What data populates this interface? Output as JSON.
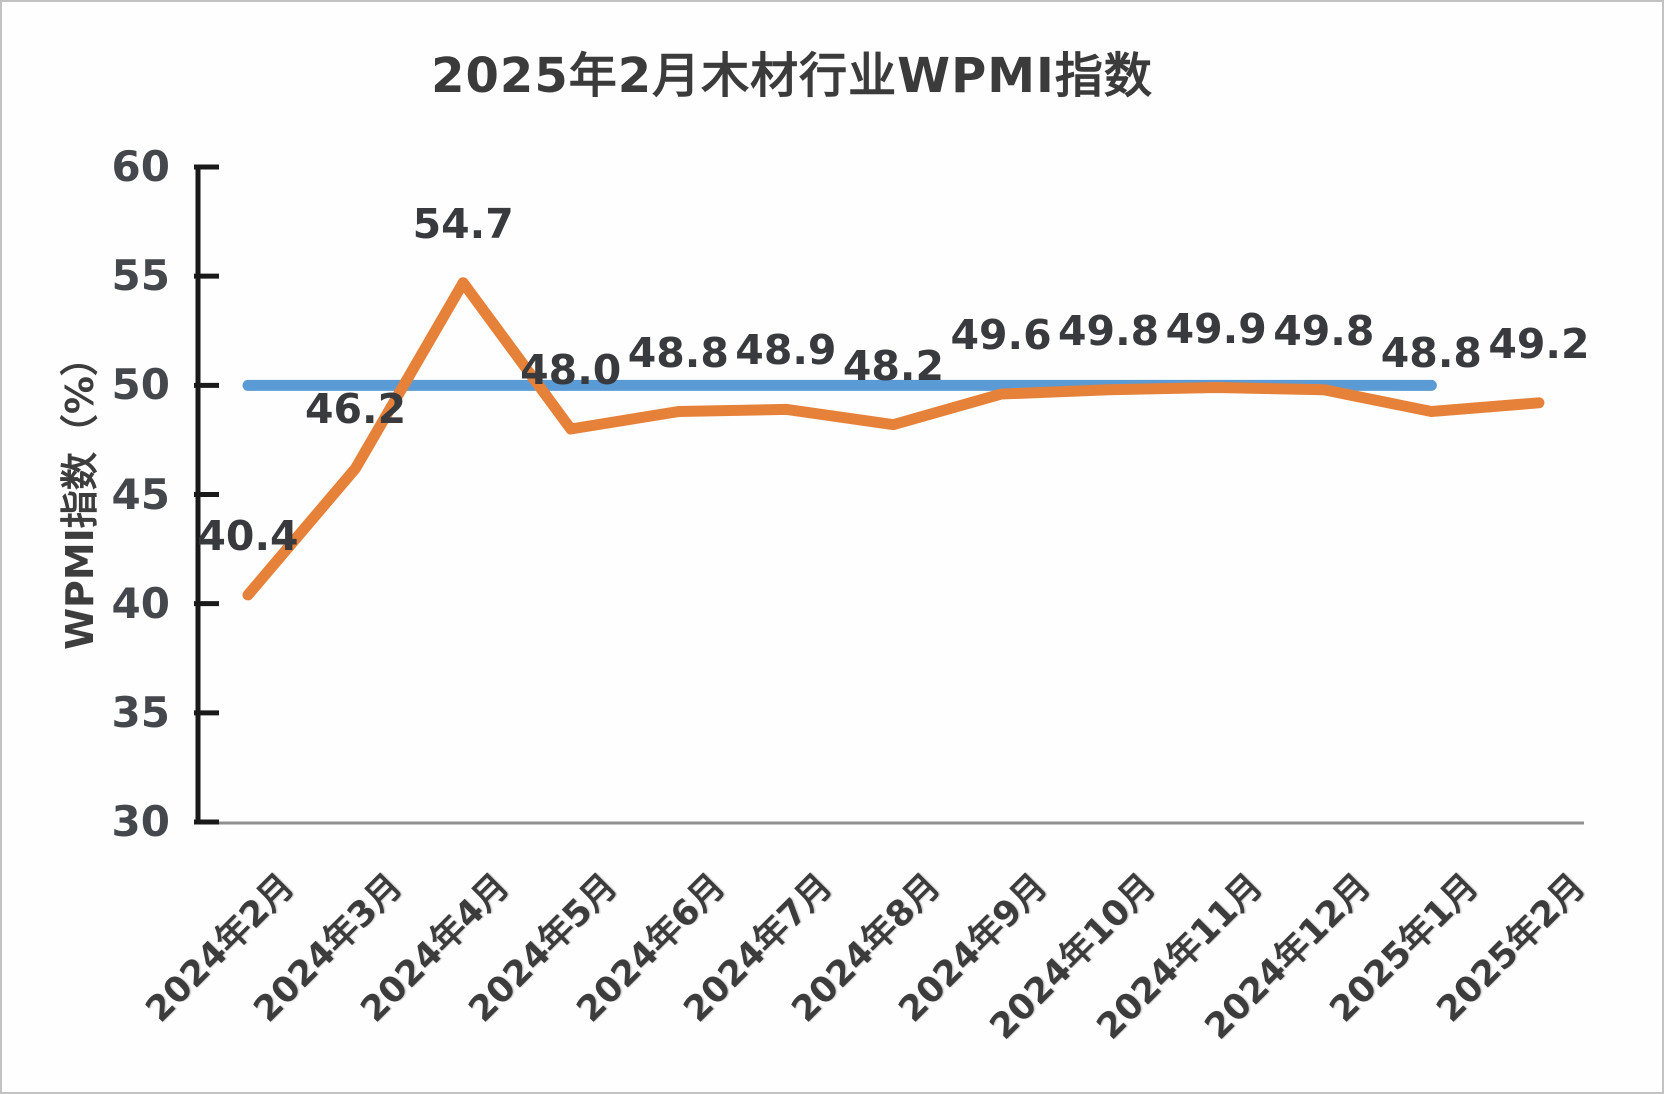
{
  "chart_data": {
    "type": "line",
    "title": "2025年2月木材行业WPMI指数",
    "ylabel": "WPMI指数（%）",
    "xlabel": "",
    "ylim": [
      30,
      60
    ],
    "ytick_step": 5,
    "ytick_labels": [
      "30",
      "35",
      "40",
      "45",
      "50",
      "55",
      "60"
    ],
    "categories": [
      "2024年2月",
      "2024年3月",
      "2024年4月",
      "2024年5月",
      "2024年6月",
      "2024年7月",
      "2024年8月",
      "2024年9月",
      "2024年10月",
      "2024年11月",
      "2024年12月",
      "2025年1月",
      "2025年2月"
    ],
    "series": [
      {
        "name": "WPMI指数",
        "values": [
          40.4,
          46.2,
          54.7,
          48.0,
          48.8,
          48.9,
          48.2,
          49.6,
          49.8,
          49.9,
          49.8,
          48.8,
          49.2
        ],
        "data_labels": [
          "40.4",
          "46.2",
          "54.7",
          "48.0",
          "48.8",
          "48.9",
          "48.2",
          "49.6",
          "49.8",
          "49.9",
          "49.8",
          "48.8",
          "49.2"
        ],
        "color": "#e6813a"
      }
    ],
    "reference_line": {
      "value": 50,
      "start_category_index": 0,
      "end_category_index": 11,
      "color": "#5b9bd5"
    },
    "legend_position": "none",
    "grid": false,
    "colors": {
      "axis_line": "#1a1a1a",
      "baseline": "#8f8f8f",
      "text": "#3b3b3b"
    }
  }
}
